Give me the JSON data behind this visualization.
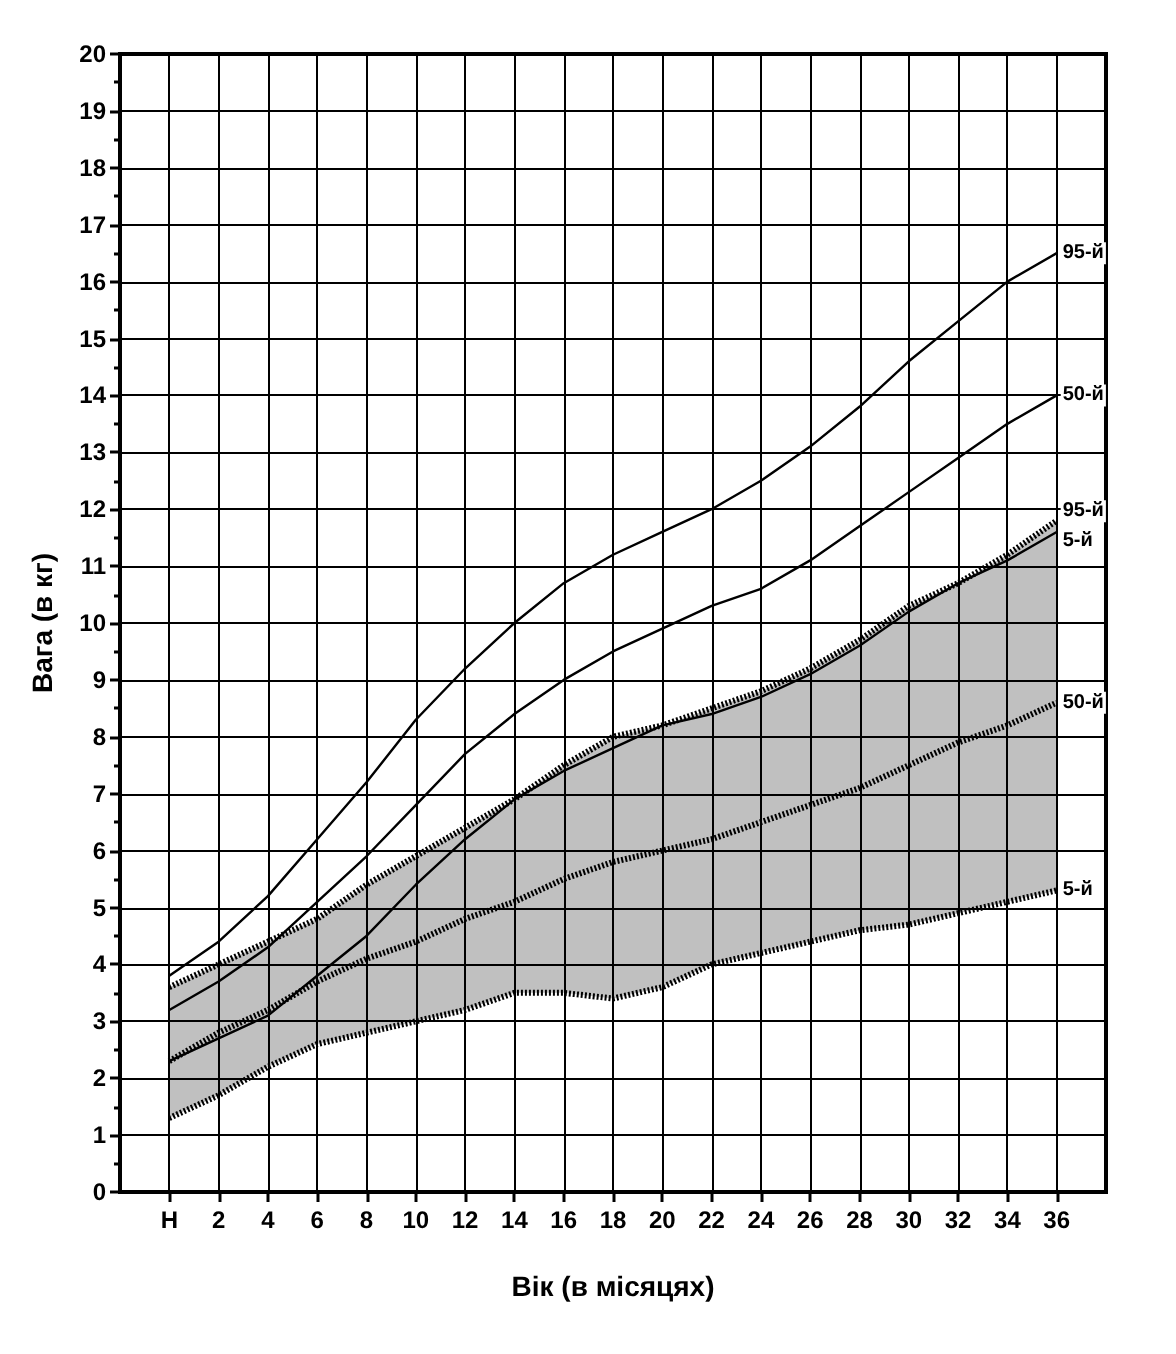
{
  "chart_data": {
    "type": "line",
    "xlabel": "Вік (в місяцях)",
    "ylabel": "Вага (в кг)",
    "x": [
      0,
      2,
      4,
      6,
      8,
      10,
      12,
      14,
      16,
      18,
      20,
      22,
      24,
      26,
      28,
      30,
      32,
      34,
      36
    ],
    "xlim": [
      -2,
      38
    ],
    "xticks": [
      {
        "value": 0,
        "label": "Н"
      },
      2,
      4,
      6,
      8,
      10,
      12,
      14,
      16,
      18,
      20,
      22,
      24,
      26,
      28,
      30,
      32,
      34,
      36
    ],
    "ylim": [
      0,
      20
    ],
    "yticks": [
      0,
      {
        "value": 0.5,
        "label": null
      },
      1,
      {
        "value": 1.5,
        "label": null
      },
      2,
      {
        "value": 2.5,
        "label": null
      },
      3,
      {
        "value": 3.5,
        "label": null
      },
      4,
      {
        "value": 4.5,
        "label": null
      },
      5,
      {
        "value": 5.5,
        "label": null
      },
      6,
      {
        "value": 6.5,
        "label": null
      },
      7,
      {
        "value": 7.5,
        "label": null
      },
      8,
      {
        "value": 8.5,
        "label": null
      },
      9,
      {
        "value": 9.5,
        "label": null
      },
      10,
      {
        "value": 10.5,
        "label": null
      },
      11,
      {
        "value": 11.5,
        "label": null
      },
      12,
      {
        "value": 12.5,
        "label": null
      },
      13,
      {
        "value": 13.5,
        "label": null
      },
      14,
      {
        "value": 14.5,
        "label": null
      },
      15,
      {
        "value": 15.5,
        "label": null
      },
      16,
      {
        "value": 16.5,
        "label": null
      },
      17,
      {
        "value": 17.5,
        "label": null
      },
      18,
      {
        "value": 18.5,
        "label": null
      },
      19,
      {
        "value": 19.5,
        "label": null
      },
      20
    ],
    "grid": true,
    "legend": false,
    "marker": "none",
    "series": [
      {
        "name": "95-й",
        "color": "#000000",
        "line_style": "solid",
        "values": [
          3.8,
          4.4,
          5.2,
          6.2,
          7.2,
          8.3,
          9.2,
          10.0,
          10.7,
          11.2,
          11.6,
          12.0,
          12.5,
          13.1,
          13.8,
          14.6,
          15.3,
          16.0,
          16.5
        ]
      },
      {
        "name": "50-й",
        "color": "#000000",
        "line_style": "solid",
        "values": [
          3.2,
          3.7,
          4.3,
          5.1,
          5.9,
          6.8,
          7.7,
          8.4,
          9.0,
          9.5,
          9.9,
          10.3,
          10.6,
          11.1,
          11.7,
          12.3,
          12.9,
          13.5,
          14.0
        ]
      },
      {
        "name": "5-й",
        "color": "#000000",
        "line_style": "solid",
        "values": [
          2.3,
          2.7,
          3.1,
          3.8,
          4.5,
          5.4,
          6.2,
          6.9,
          7.4,
          7.8,
          8.2,
          8.4,
          8.7,
          9.1,
          9.6,
          10.2,
          10.7,
          11.1,
          11.6
        ]
      },
      {
        "name": "95-й",
        "color": "#000000",
        "line_style": "dotted",
        "values": [
          3.6,
          4.0,
          4.4,
          4.8,
          5.4,
          5.9,
          6.4,
          6.9,
          7.5,
          8.0,
          8.2,
          8.5,
          8.8,
          9.2,
          9.7,
          10.3,
          10.7,
          11.2,
          11.8
        ]
      },
      {
        "name": "50-й",
        "color": "#000000",
        "line_style": "dotted",
        "values": [
          2.3,
          2.8,
          3.2,
          3.7,
          4.1,
          4.4,
          4.8,
          5.1,
          5.5,
          5.8,
          6.0,
          6.2,
          6.5,
          6.8,
          7.1,
          7.5,
          7.9,
          8.2,
          8.6
        ],
        "lower": [
          1.3,
          1.7,
          2.2,
          2.6,
          2.8,
          3.0,
          3.2,
          3.5,
          3.5,
          3.4,
          3.6,
          4.0,
          4.2,
          4.4,
          4.6,
          4.7,
          4.9,
          5.1,
          5.3
        ],
        "upper": [
          3.6,
          4.0,
          4.4,
          4.8,
          5.4,
          5.9,
          6.4,
          6.9,
          7.5,
          8.0,
          8.2,
          8.5,
          8.8,
          9.2,
          9.7,
          10.3,
          10.7,
          11.2,
          11.8
        ]
      },
      {
        "name": "5-й",
        "color": "#000000",
        "line_style": "dotted",
        "values": [
          1.3,
          1.7,
          2.2,
          2.6,
          2.8,
          3.0,
          3.2,
          3.5,
          3.5,
          3.4,
          3.6,
          4.0,
          4.2,
          4.4,
          4.6,
          4.7,
          4.9,
          5.1,
          5.3
        ]
      }
    ]
  }
}
